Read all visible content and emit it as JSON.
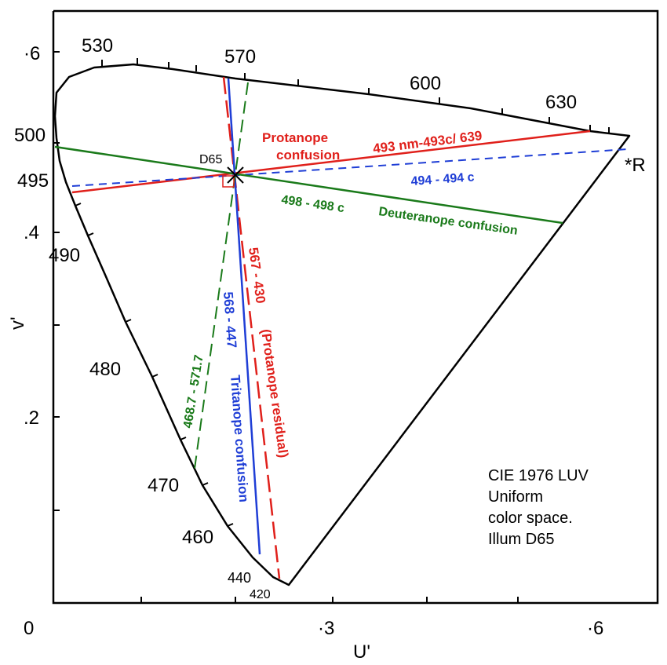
{
  "axes": {
    "u_label": "U'",
    "v_label": "v'",
    "origin_label": "0",
    "u_ticks": [
      "·3",
      "·6"
    ],
    "v_ticks": [
      "·6",
      ".4",
      ".2"
    ]
  },
  "wavelengths": {
    "w530": "530",
    "w570": "570",
    "w600": "600",
    "w630": "630",
    "w500": "500",
    "w495": "495",
    "w490": "490",
    "w480": "480",
    "w470": "470",
    "w460": "460",
    "w440": "440",
    "w420": "420"
  },
  "point_labels": {
    "white": "D65",
    "red": "*R"
  },
  "lines": {
    "protanope_title_1": "Protanope",
    "protanope_title_2": "confusion",
    "protanope_pair": "493 nm-493c/ 639",
    "blue_dashed": "494 - 494 c",
    "deut_pair": "498 - 498 c",
    "deut_title": "Deuteranope confusion",
    "prot_residual_a": "567 - 430",
    "prot_residual_b": "(Protanope residual)",
    "trit_pair": "568 - 447",
    "trit_title": "Tritanope confusion",
    "green_dashed": "468.7 - 571.7"
  },
  "caption": {
    "line1": "CIE 1976 LUV",
    "line2": "Uniform",
    "line3": "color space.",
    "line4": "Illum D65"
  },
  "colors": {
    "red": "#e0201b",
    "blue": "#1f3ed6",
    "green": "#1a7a1a",
    "dark_red": "#c01818"
  }
}
